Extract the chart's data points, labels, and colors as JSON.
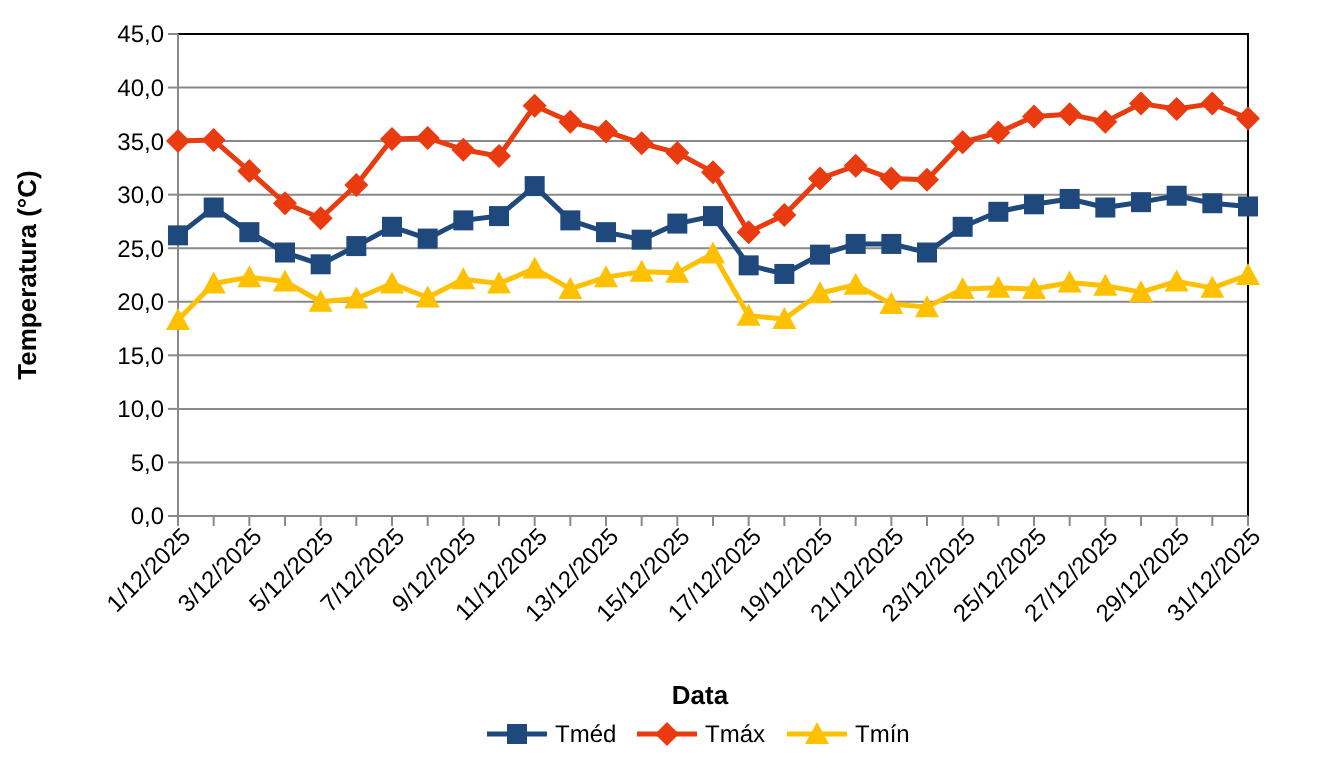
{
  "chart_data": {
    "type": "line",
    "xlabel": "Data",
    "ylabel": "Temperatura (°C)",
    "categories": [
      "1/12/2025",
      null,
      "3/12/2025",
      null,
      "5/12/2025",
      null,
      "7/12/2025",
      null,
      "9/12/2025",
      null,
      "11/12/2025",
      null,
      "13/12/2025",
      null,
      "15/12/2025",
      null,
      "17/12/2025",
      null,
      "19/12/2025",
      null,
      "21/12/2025",
      null,
      "23/12/2025",
      null,
      "25/12/2025",
      null,
      "27/12/2025",
      null,
      "29/12/2025",
      null,
      "31/12/2025"
    ],
    "series": [
      {
        "name": "Tméd",
        "color": "#1f497d",
        "marker": "square",
        "values": [
          26.2,
          28.8,
          26.5,
          24.6,
          23.5,
          25.2,
          27.0,
          25.9,
          27.6,
          28.0,
          30.8,
          27.6,
          26.5,
          25.8,
          27.3,
          28.0,
          23.4,
          22.6,
          24.4,
          25.4,
          25.4,
          24.6,
          27.0,
          28.4,
          29.1,
          29.6,
          28.8,
          29.3,
          29.9,
          29.2,
          28.9
        ]
      },
      {
        "name": "Tmáx",
        "color": "#e93b0f",
        "marker": "diamond",
        "values": [
          35.0,
          35.1,
          32.2,
          29.2,
          27.8,
          30.9,
          35.2,
          35.3,
          34.2,
          33.6,
          38.3,
          36.8,
          35.9,
          34.8,
          33.9,
          32.1,
          26.5,
          28.1,
          31.5,
          32.7,
          31.5,
          31.4,
          34.9,
          35.8,
          37.3,
          37.5,
          36.8,
          38.5,
          38.0,
          38.5,
          37.1
        ]
      },
      {
        "name": "Tmín",
        "color": "#ffc000",
        "marker": "triangle",
        "values": [
          18.3,
          21.7,
          22.3,
          21.9,
          20.0,
          20.3,
          21.7,
          20.4,
          22.1,
          21.7,
          23.1,
          21.2,
          22.3,
          22.8,
          22.7,
          24.5,
          18.7,
          18.4,
          20.8,
          21.6,
          19.8,
          19.5,
          21.2,
          21.3,
          21.2,
          21.8,
          21.5,
          20.9,
          21.9,
          21.3,
          22.5
        ]
      }
    ],
    "ylim": [
      0,
      45
    ],
    "yticks": [
      {
        "value": 0,
        "label": "0,0"
      },
      {
        "value": 5,
        "label": "5,0"
      },
      {
        "value": 10,
        "label": "10,0"
      },
      {
        "value": 15,
        "label": "15,0"
      },
      {
        "value": 20,
        "label": "20,0"
      },
      {
        "value": 25,
        "label": "25,0"
      },
      {
        "value": 30,
        "label": "30,0"
      },
      {
        "value": 35,
        "label": "35,0"
      },
      {
        "value": 40,
        "label": "40,0"
      },
      {
        "value": 45,
        "label": "45,0"
      }
    ],
    "grid": "y",
    "legend": "bottom",
    "line_style": "solid"
  }
}
